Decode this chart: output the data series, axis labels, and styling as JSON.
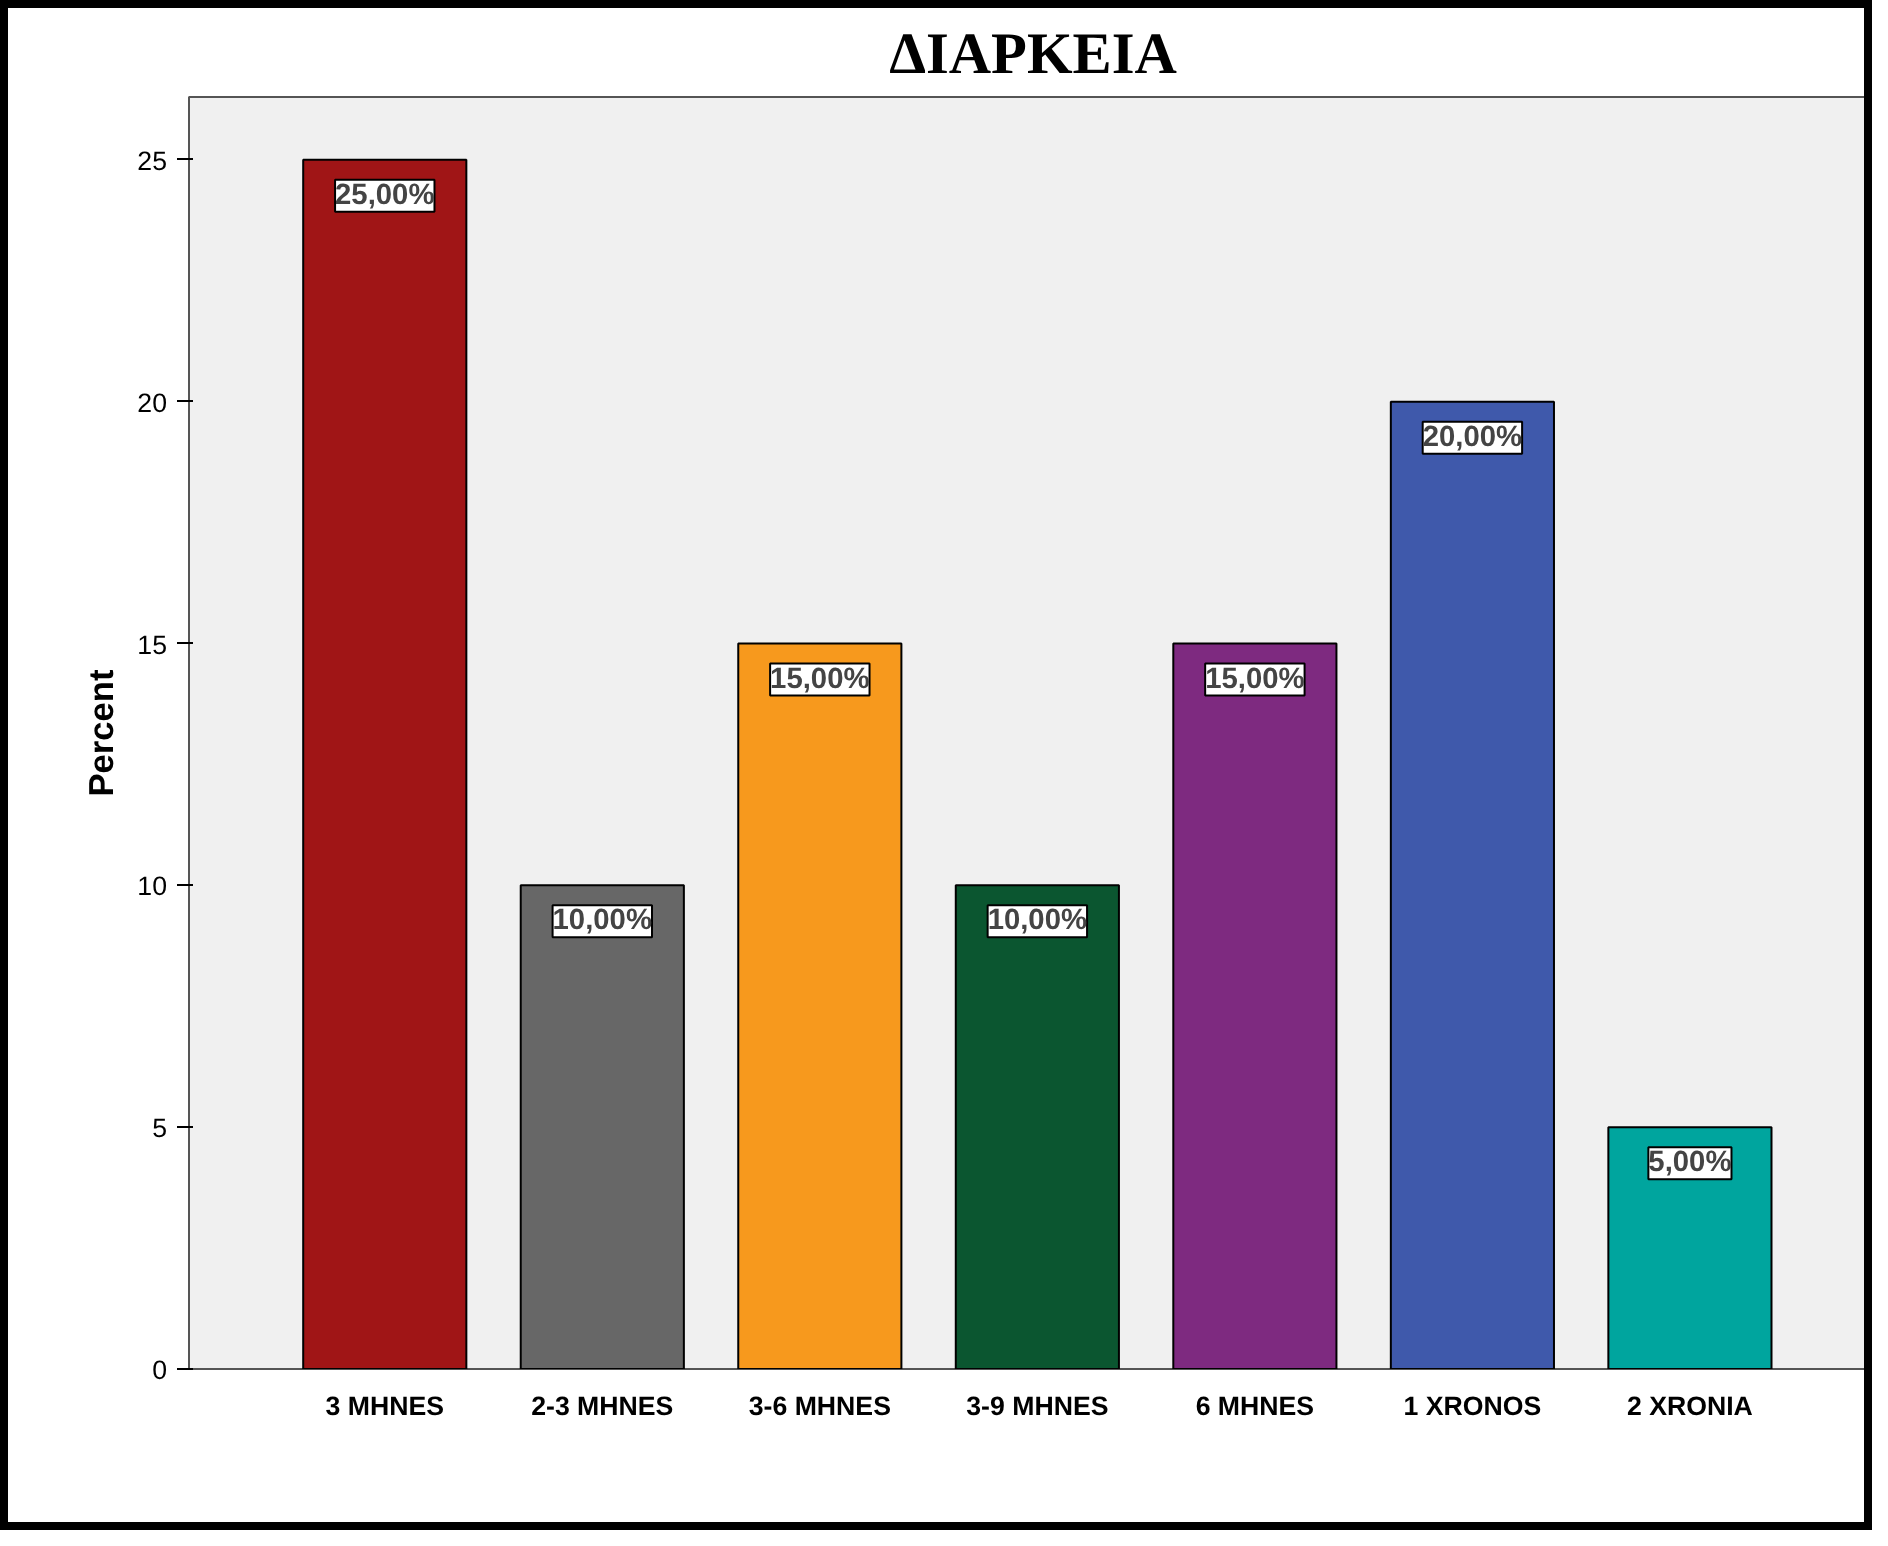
{
  "chart_data": {
    "type": "bar",
    "title": "ΔΙΑΡΚΕΙΑ",
    "ylabel": "Percent",
    "categories": [
      "3 MHNES",
      "2-3 MHNES",
      "3-6 MHNES",
      "3-9 MHNES",
      "6 MHNES",
      "1 XRONOS",
      "2 XRONIA"
    ],
    "values": [
      25,
      10,
      15,
      10,
      15,
      20,
      5
    ],
    "colors": [
      "#a01516",
      "#676767",
      "#f7991d",
      "#0b5630",
      "#7e2a80",
      "#3f59ab",
      "#00a59e"
    ],
    "value_labels": [
      "25,00%",
      "10,00%",
      "15,00%",
      "10,00%",
      "15,00%",
      "20,00%",
      "5,00%"
    ],
    "ylim": [
      0,
      26.3
    ],
    "yticks": [
      0,
      5,
      10,
      15,
      20,
      25
    ],
    "grid": false
  }
}
